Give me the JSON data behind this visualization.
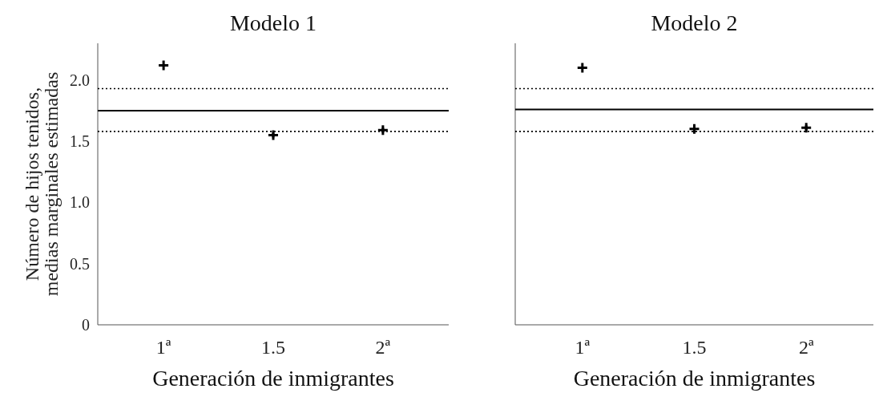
{
  "chart_data": [
    {
      "type": "scatter",
      "title": "Modelo 1",
      "xlabel": "Generación de inmigrantes",
      "ylabel": "Número de hijos tenidos,\nmedias marginales estimadas",
      "categories": [
        "1ª",
        "1.5",
        "2ª"
      ],
      "values": [
        2.12,
        1.55,
        1.59
      ],
      "errors": [
        0.01,
        0.02,
        0.02
      ],
      "color": "#000000",
      "marker": "cross",
      "ylim": [
        0,
        2.3
      ],
      "yticks": [
        {
          "value": 0,
          "label": "0"
        },
        {
          "value": 0.5,
          "label": "0.5"
        },
        {
          "value": 1,
          "label": "1.0"
        },
        {
          "value": 1.5,
          "label": "1.5"
        },
        {
          "value": 2,
          "label": "2.0"
        }
      ],
      "grid": false,
      "ref_lines": [
        {
          "axis": "y",
          "value": 1.93,
          "line_style": "dotted",
          "color": "#000000"
        },
        {
          "axis": "y",
          "value": 1.75,
          "line_style": "solid",
          "color": "#000000"
        },
        {
          "axis": "y",
          "value": 1.58,
          "line_style": "dotted",
          "color": "#000000"
        }
      ]
    },
    {
      "type": "scatter",
      "title": "Modelo 2",
      "xlabel": "Generación de inmigrantes",
      "categories": [
        "1ª",
        "1.5",
        "2ª"
      ],
      "values": [
        2.1,
        1.6,
        1.61
      ],
      "errors": [
        0.01,
        0.02,
        0.02
      ],
      "color": "#000000",
      "marker": "cross",
      "ylim": [
        0,
        2.3
      ],
      "tick_labels": "x",
      "grid": false,
      "ref_lines": [
        {
          "axis": "y",
          "value": 1.93,
          "line_style": "dotted",
          "color": "#000000"
        },
        {
          "axis": "y",
          "value": 1.76,
          "line_style": "solid",
          "color": "#000000"
        },
        {
          "axis": "y",
          "value": 1.58,
          "line_style": "dotted",
          "color": "#000000"
        }
      ]
    }
  ]
}
